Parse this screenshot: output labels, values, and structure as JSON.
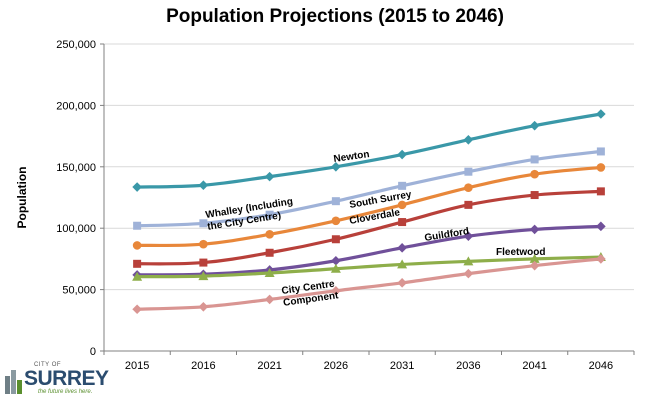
{
  "chart_data": {
    "type": "line",
    "title": "Population Projections (2015 to 2046)",
    "xlabel": "",
    "ylabel": "Population",
    "categories": [
      "2015",
      "2016",
      "2021",
      "2026",
      "2031",
      "2036",
      "2041",
      "2046"
    ],
    "ylim": [
      0,
      250000
    ],
    "yticks": [
      0,
      50000,
      100000,
      150000,
      200000,
      250000
    ],
    "ytick_labels": [
      "0",
      "50,000",
      "100,000",
      "150,000",
      "200,000",
      "250,000"
    ],
    "grid": true,
    "legend": "none",
    "series": [
      {
        "name": "Newton",
        "color": "#3a98a8",
        "marker": "diamond",
        "values": [
          133500,
          135000,
          142000,
          150000,
          160000,
          172000,
          183500,
          193000
        ]
      },
      {
        "name": "Whalley (Including the City Centre)",
        "color": "#9fb2d8",
        "marker": "square",
        "values": [
          102000,
          104000,
          111000,
          122000,
          134500,
          146000,
          156000,
          162500
        ]
      },
      {
        "name": "South Surrey",
        "color": "#e8873a",
        "marker": "circle",
        "values": [
          86000,
          87000,
          95000,
          106000,
          119000,
          133000,
          144000,
          149500
        ]
      },
      {
        "name": "Cloverdale",
        "color": "#b8403a",
        "marker": "square",
        "values": [
          71000,
          72000,
          80000,
          91000,
          105000,
          119000,
          127000,
          130000
        ]
      },
      {
        "name": "Guildford",
        "color": "#70509a",
        "marker": "diamond",
        "values": [
          62000,
          62500,
          66000,
          73500,
          84000,
          93500,
          99000,
          101500
        ]
      },
      {
        "name": "Fleetwood",
        "color": "#8eae4a",
        "marker": "triangle",
        "values": [
          60500,
          61000,
          63500,
          67000,
          70500,
          73000,
          75000,
          76500
        ]
      },
      {
        "name": "City Centre Component",
        "color": "#d99592",
        "marker": "diamond",
        "values": [
          34000,
          36000,
          42000,
          49000,
          55500,
          63000,
          69500,
          75000
        ]
      }
    ],
    "annotations": [
      {
        "id": "newton",
        "lines": [
          "Newton"
        ]
      },
      {
        "id": "whalley",
        "lines": [
          "Whalley (Including",
          "the City Centre)"
        ]
      },
      {
        "id": "southsurrey",
        "lines": [
          "South Surrey"
        ]
      },
      {
        "id": "cloverdale",
        "lines": [
          "Cloverdale"
        ]
      },
      {
        "id": "guildford",
        "lines": [
          "Guildford"
        ]
      },
      {
        "id": "fleetwood",
        "lines": [
          "Fleetwood"
        ]
      },
      {
        "id": "citycentre",
        "lines": [
          "City Centre",
          "Component"
        ]
      }
    ]
  },
  "logo": {
    "city_of": "CITY OF",
    "name": "SURREY",
    "tagline": "the future lives here."
  }
}
